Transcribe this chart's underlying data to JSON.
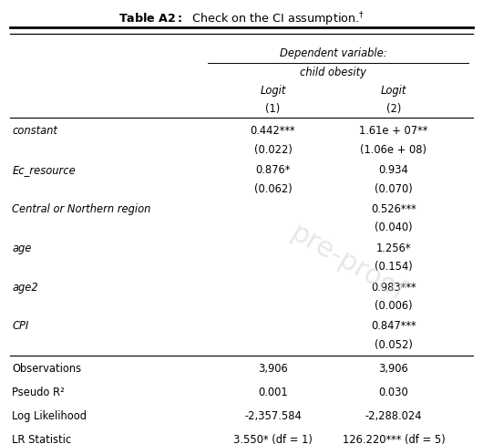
{
  "title": "Table A2:",
  "title_suffix": "Check on the CI assumption.",
  "title_footnote": "†",
  "dep_var_label": "Dependent variable:",
  "dep_var_name": "child obesity",
  "col_headers": [
    "Logit",
    "Logit"
  ],
  "col_numbers": [
    "(1)",
    "(2)"
  ],
  "rows": [
    {
      "label": "constant",
      "italic_label": true,
      "col1_coef": "0.442***",
      "col1_se": "(0.022)",
      "col2_coef": "1.61e + 07**",
      "col2_se": "(1.06e + 08)"
    },
    {
      "label": "Ec_resource",
      "italic_label": true,
      "col1_coef": "0.876*",
      "col1_se": "(0.062)",
      "col2_coef": "0.934",
      "col2_se": "(0.070)"
    },
    {
      "label": "Central or Northern region",
      "italic_label": true,
      "col1_coef": "",
      "col1_se": "",
      "col2_coef": "0.526***",
      "col2_se": "(0.040)"
    },
    {
      "label": "age",
      "italic_label": true,
      "col1_coef": "",
      "col1_se": "",
      "col2_coef": "1.256*",
      "col2_se": "(0.154)"
    },
    {
      "label": "age2",
      "italic_label": true,
      "col1_coef": "",
      "col1_se": "",
      "col2_coef": "0.983***",
      "col2_se": "(0.006)"
    },
    {
      "label": "CPI",
      "italic_label": true,
      "col1_coef": "",
      "col1_se": "",
      "col2_coef": "0.847***",
      "col2_se": "(0.052)"
    }
  ],
  "stats": [
    {
      "label": "Observations",
      "col1": "3,906",
      "col2": "3,906"
    },
    {
      "label": "Pseudo R²",
      "col1": "0.001",
      "col2": "0.030"
    },
    {
      "label": "Log Likelihood",
      "col1": "-2,357.584",
      "col2": "-2,288.024"
    },
    {
      "label": "LR Statistic",
      "col1": "3.550* (df = 1)",
      "col2": "126.220*** (df = 5)"
    }
  ],
  "bg_color": "#ffffff",
  "text_color": "#000000",
  "proof_color": "#cccccc"
}
